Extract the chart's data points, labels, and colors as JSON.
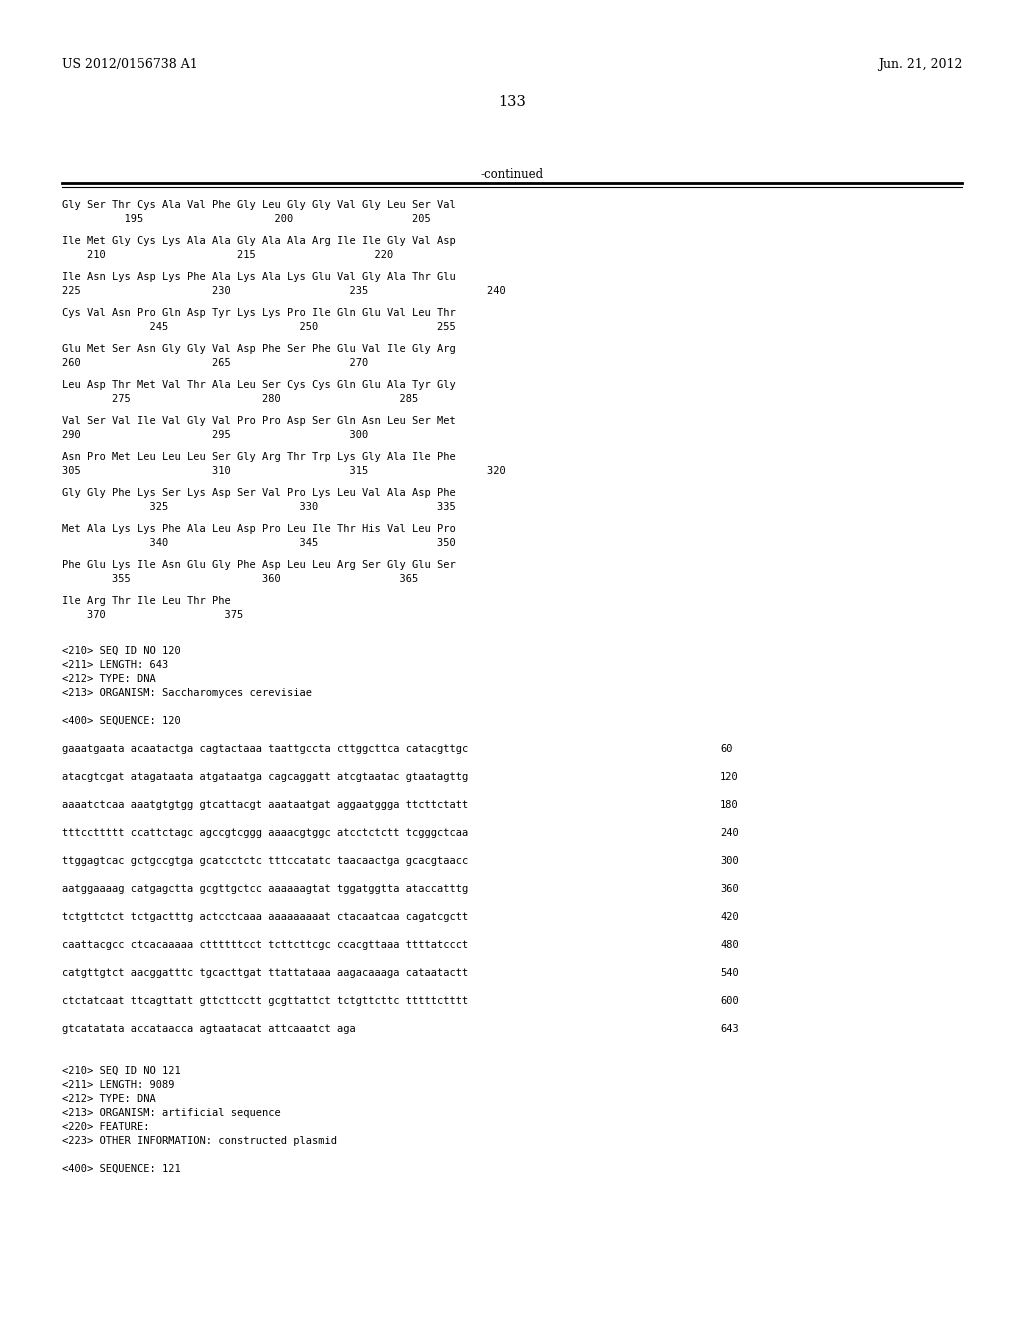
{
  "header_left": "US 2012/0156738 A1",
  "header_right": "Jun. 21, 2012",
  "page_number": "133",
  "continued_label": "-continued",
  "background_color": "#ffffff",
  "text_color": "#000000",
  "mono_font_size": 7.5,
  "header_font_size": 9.0,
  "page_font_size": 10.5,
  "content": [
    {
      "t": "aa",
      "s": "Gly Ser Thr Cys Ala Val Phe Gly Leu Gly Gly Val Gly Leu Ser Val",
      "n": "          195                     200                   205"
    },
    {
      "t": "aa",
      "s": "Ile Met Gly Cys Lys Ala Ala Gly Ala Ala Arg Ile Ile Gly Val Asp",
      "n": "    210                     215                   220"
    },
    {
      "t": "aa",
      "s": "Ile Asn Lys Asp Lys Phe Ala Lys Ala Lys Glu Val Gly Ala Thr Glu",
      "n": "225                     230                   235                   240"
    },
    {
      "t": "aa",
      "s": "Cys Val Asn Pro Gln Asp Tyr Lys Lys Pro Ile Gln Glu Val Leu Thr",
      "n": "              245                     250                   255"
    },
    {
      "t": "aa",
      "s": "Glu Met Ser Asn Gly Gly Val Asp Phe Ser Phe Glu Val Ile Gly Arg",
      "n": "260                     265                   270"
    },
    {
      "t": "aa",
      "s": "Leu Asp Thr Met Val Thr Ala Leu Ser Cys Cys Gln Glu Ala Tyr Gly",
      "n": "        275                     280                   285"
    },
    {
      "t": "aa",
      "s": "Val Ser Val Ile Val Gly Val Pro Pro Asp Ser Gln Asn Leu Ser Met",
      "n": "290                     295                   300"
    },
    {
      "t": "aa",
      "s": "Asn Pro Met Leu Leu Leu Ser Gly Arg Thr Trp Lys Gly Ala Ile Phe",
      "n": "305                     310                   315                   320"
    },
    {
      "t": "aa",
      "s": "Gly Gly Phe Lys Ser Lys Asp Ser Val Pro Lys Leu Val Ala Asp Phe",
      "n": "              325                     330                   335"
    },
    {
      "t": "aa",
      "s": "Met Ala Lys Lys Phe Ala Leu Asp Pro Leu Ile Thr His Val Leu Pro",
      "n": "              340                     345                   350"
    },
    {
      "t": "aa",
      "s": "Phe Glu Lys Ile Asn Glu Gly Phe Asp Leu Leu Arg Ser Gly Glu Ser",
      "n": "        355                     360                   365"
    },
    {
      "t": "aa",
      "s": "Ile Arg Thr Ile Leu Thr Phe",
      "n": "    370                   375"
    },
    {
      "t": "blank"
    },
    {
      "t": "meta",
      "s": "<210> SEQ ID NO 120"
    },
    {
      "t": "meta",
      "s": "<211> LENGTH: 643"
    },
    {
      "t": "meta",
      "s": "<212> TYPE: DNA"
    },
    {
      "t": "meta",
      "s": "<213> ORGANISM: Saccharomyces cerevisiae"
    },
    {
      "t": "blank"
    },
    {
      "t": "meta",
      "s": "<400> SEQUENCE: 120"
    },
    {
      "t": "blank"
    },
    {
      "t": "dna",
      "s": "gaaatgaata acaatactga cagtactaaa taattgccta cttggcttca catacgttgc",
      "n": "60"
    },
    {
      "t": "blank"
    },
    {
      "t": "dna",
      "s": "atacgtcgat atagataata atgataatga cagcaggatt atcgtaatac gtaatagttg",
      "n": "120"
    },
    {
      "t": "blank"
    },
    {
      "t": "dna",
      "s": "aaaatctcaa aaatgtgtgg gtcattacgt aaataatgat aggaatggga ttcttctatt",
      "n": "180"
    },
    {
      "t": "blank"
    },
    {
      "t": "dna",
      "s": "tttccttttt ccattctagc agccgtcggg aaaacgtggc atcctctctt tcgggctcaa",
      "n": "240"
    },
    {
      "t": "blank"
    },
    {
      "t": "dna",
      "s": "ttggagtcac gctgccgtga gcatcctctc tttccatatc taacaactga gcacgtaacc",
      "n": "300"
    },
    {
      "t": "blank"
    },
    {
      "t": "dna",
      "s": "aatggaaaag catgagctta gcgttgctcc aaaaaagtat tggatggtta ataccatttg",
      "n": "360"
    },
    {
      "t": "blank"
    },
    {
      "t": "dna",
      "s": "tctgttctct tctgactttg actcctcaaa aaaaaaaaat ctacaatcaa cagatcgctt",
      "n": "420"
    },
    {
      "t": "blank"
    },
    {
      "t": "dna",
      "s": "caattacgcc ctcacaaaaa cttttttcct tcttcttcgc ccacgttaaa ttttatccct",
      "n": "480"
    },
    {
      "t": "blank"
    },
    {
      "t": "dna",
      "s": "catgttgtct aacggatttc tgcacttgat ttattataaa aagacaaaga cataatactt",
      "n": "540"
    },
    {
      "t": "blank"
    },
    {
      "t": "dna",
      "s": "ctctatcaat ttcagttatt gttcttcctt gcgttattct tctgttcttc tttttctttt",
      "n": "600"
    },
    {
      "t": "blank"
    },
    {
      "t": "dna",
      "s": "gtcatatata accataacca agtaatacat attcaaatct aga",
      "n": "643"
    },
    {
      "t": "blank"
    },
    {
      "t": "blank"
    },
    {
      "t": "meta",
      "s": "<210> SEQ ID NO 121"
    },
    {
      "t": "meta",
      "s": "<211> LENGTH: 9089"
    },
    {
      "t": "meta",
      "s": "<212> TYPE: DNA"
    },
    {
      "t": "meta",
      "s": "<213> ORGANISM: artificial sequence"
    },
    {
      "t": "meta",
      "s": "<220> FEATURE:"
    },
    {
      "t": "meta",
      "s": "<223> OTHER INFORMATION: constructed plasmid"
    },
    {
      "t": "blank"
    },
    {
      "t": "meta",
      "s": "<400> SEQUENCE: 121"
    }
  ]
}
